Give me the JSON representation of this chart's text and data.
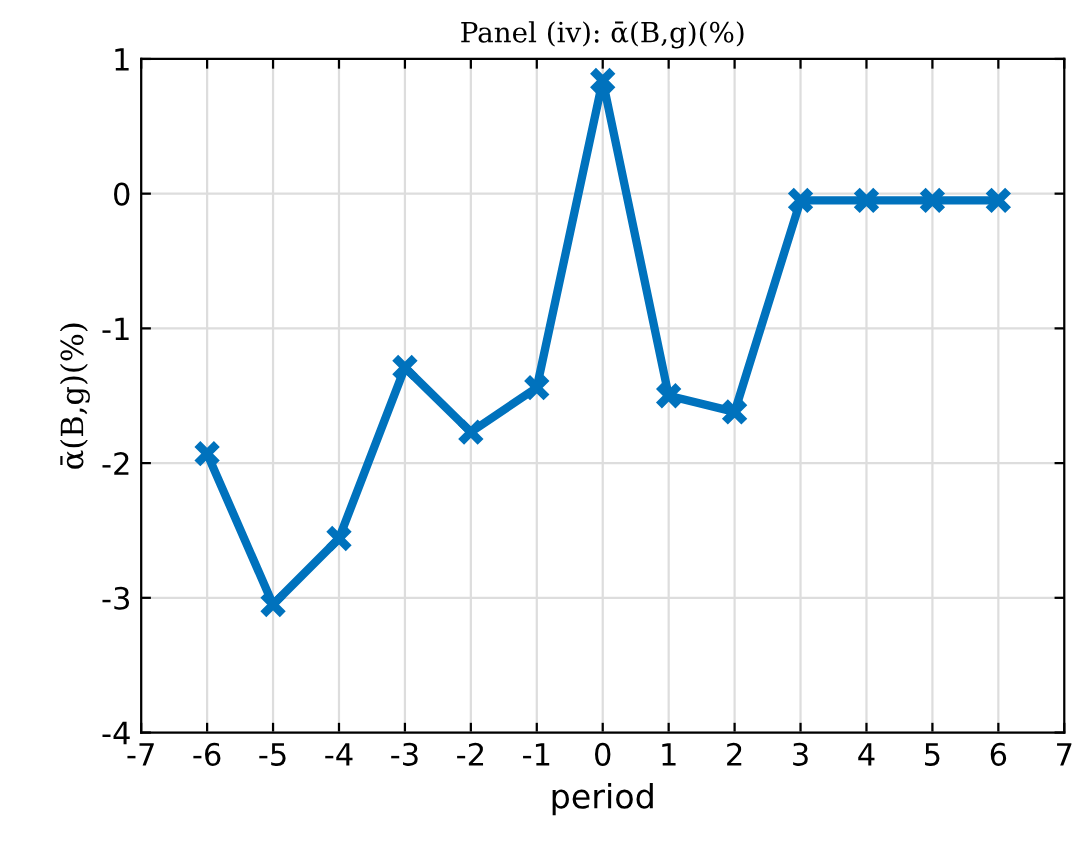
{
  "chart_data": {
    "type": "line",
    "title": "Panel (iv): ᾱ(B,g)(%)",
    "xlabel": "period",
    "ylabel": "ᾱ(B,g)(%)",
    "x": [
      -6,
      -5,
      -4,
      -3,
      -2,
      -1,
      0,
      1,
      2,
      3,
      4,
      5,
      6
    ],
    "series": [
      {
        "color": "#0072bd",
        "values": [
          -1.93,
          -3.05,
          -2.56,
          -1.29,
          -1.77,
          -1.44,
          0.84,
          -1.5,
          -1.62,
          -0.05,
          -0.05,
          -0.05,
          -0.05
        ]
      }
    ],
    "xlim": [
      -7,
      7
    ],
    "ylim": [
      -4,
      1
    ],
    "xticks": [
      -7,
      -6,
      -5,
      -4,
      -3,
      -2,
      -1,
      0,
      1,
      2,
      3,
      4,
      5,
      6,
      7
    ],
    "yticks": [
      -4,
      -3,
      -2,
      -1,
      0,
      1
    ],
    "grid": true,
    "marker": "cross",
    "line_style": "solid"
  }
}
